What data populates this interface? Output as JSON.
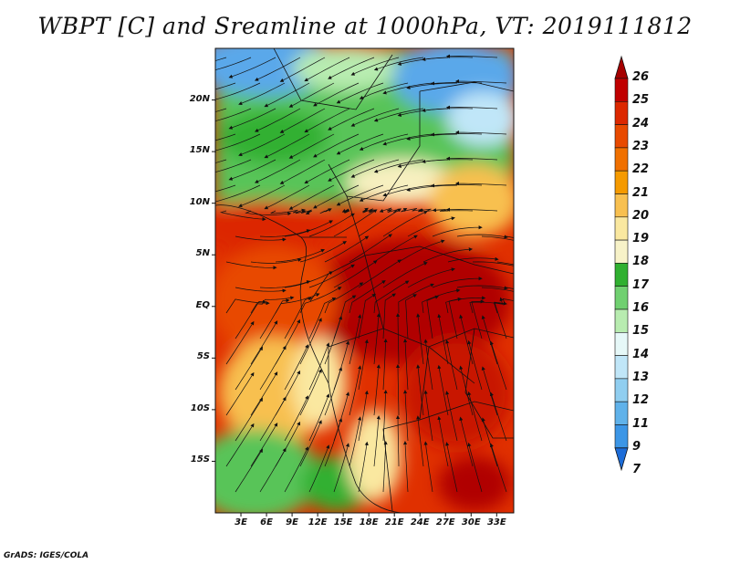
{
  "title": "WBPT [C] and Sreamline at 1000hPa, VT: 2019111812",
  "credit": "GrADS: IGES/COLA",
  "map": {
    "lon_range": [
      0,
      35
    ],
    "lat_range": [
      -20,
      25
    ],
    "lat_ticks": [
      {
        "value": 20,
        "label": "20N"
      },
      {
        "value": 15,
        "label": "15N"
      },
      {
        "value": 10,
        "label": "10N"
      },
      {
        "value": 5,
        "label": "5N"
      },
      {
        "value": 0,
        "label": "EQ"
      },
      {
        "value": -5,
        "label": "5S"
      },
      {
        "value": -10,
        "label": "10S"
      },
      {
        "value": -15,
        "label": "15S"
      }
    ],
    "lon_ticks": [
      {
        "value": 3,
        "label": "3E"
      },
      {
        "value": 6,
        "label": "6E"
      },
      {
        "value": 9,
        "label": "9E"
      },
      {
        "value": 12,
        "label": "12E"
      },
      {
        "value": 15,
        "label": "15E"
      },
      {
        "value": 18,
        "label": "18E"
      },
      {
        "value": 21,
        "label": "21E"
      },
      {
        "value": 24,
        "label": "24E"
      },
      {
        "value": 27,
        "label": "27E"
      },
      {
        "value": 30,
        "label": "30E"
      },
      {
        "value": 33,
        "label": "33E"
      }
    ]
  },
  "colorbar": {
    "labels": [
      "26",
      "25",
      "24",
      "23",
      "22",
      "21",
      "20",
      "19",
      "18",
      "17",
      "16",
      "15",
      "14",
      "13",
      "12",
      "11",
      "9",
      "7"
    ],
    "colors": [
      "#a50000",
      "#c00000",
      "#dc2800",
      "#e84a00",
      "#f07000",
      "#f59a00",
      "#f8c050",
      "#fae8a0",
      "#f7f2c8",
      "#30b030",
      "#70d070",
      "#b8ecb0",
      "#e6f8f8",
      "#c0e6f8",
      "#90cef0",
      "#60b2ea",
      "#3c96e6",
      "#1c6cd8"
    ]
  }
}
